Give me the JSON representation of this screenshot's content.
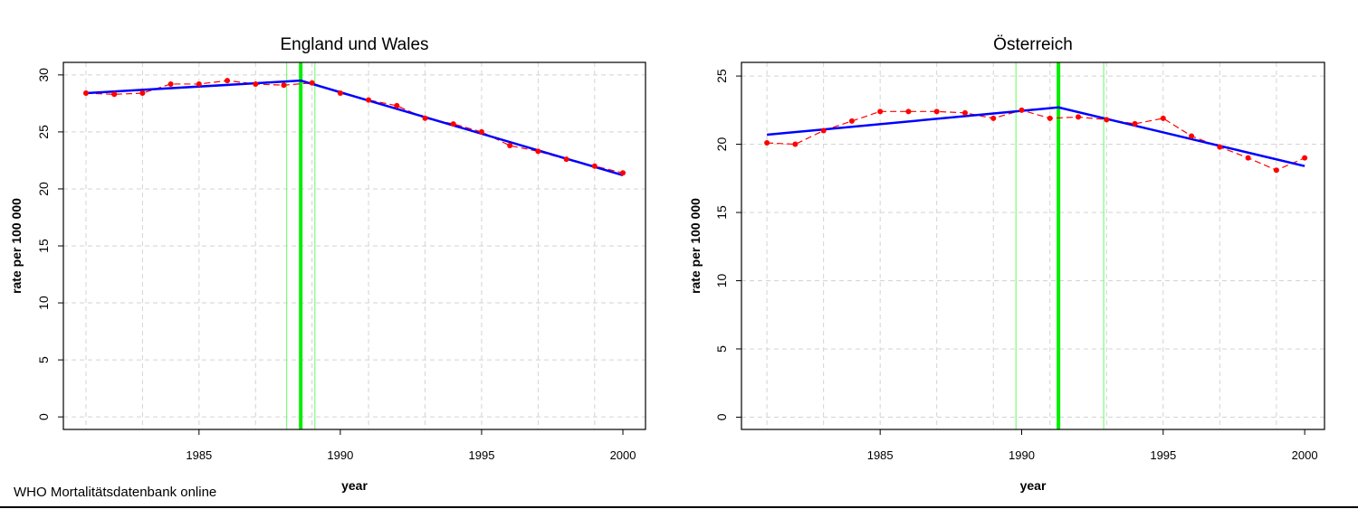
{
  "figure": {
    "source_note": "WHO Mortalitätsdatenbank online"
  },
  "colors": {
    "observed": "#ff0000",
    "trend": "#0000ff",
    "breakpoint": "#00ee00",
    "breakpoint_ci": "#7cfc7c",
    "grid": "#d3d3d3"
  },
  "chart_data": [
    {
      "type": "line",
      "title": "England und Wales",
      "xlabel": "year",
      "ylabel": "rate per 100 000",
      "xlim": [
        1980.2,
        2000.8
      ],
      "ylim": [
        -1.1,
        31.1
      ],
      "xticks": [
        1985,
        1990,
        1995,
        2000
      ],
      "yticks": [
        0,
        5,
        10,
        15,
        20,
        25,
        30
      ],
      "grid": true,
      "series": [
        {
          "style": "observed-dashed-with-points",
          "x": [
            1981,
            1982,
            1983,
            1984,
            1985,
            1986,
            1987,
            1988,
            1989,
            1990,
            1991,
            1992,
            1993,
            1994,
            1995,
            1996,
            1997,
            1998,
            1999,
            2000
          ],
          "y": [
            28.4,
            28.3,
            28.4,
            29.2,
            29.2,
            29.5,
            29.2,
            29.1,
            29.3,
            28.4,
            27.8,
            27.3,
            26.2,
            25.7,
            25.0,
            23.8,
            23.3,
            22.6,
            22.0,
            21.4
          ]
        },
        {
          "style": "segmented-trend",
          "x": [
            1981,
            1988.6,
            2000
          ],
          "y": [
            28.4,
            29.5,
            21.2
          ]
        }
      ],
      "breakpoint": 1988.6,
      "breakpoint_ci": [
        1988.1,
        1989.1
      ]
    },
    {
      "type": "line",
      "title": "Österreich",
      "xlabel": "year",
      "ylabel": "rate per 100 000",
      "xlim": [
        1980.1,
        2000.7
      ],
      "ylim": [
        -0.9,
        26.0
      ],
      "xticks": [
        1985,
        1990,
        1995,
        2000
      ],
      "yticks": [
        0,
        5,
        10,
        15,
        20,
        25
      ],
      "grid": true,
      "series": [
        {
          "style": "observed-dashed-with-points",
          "x": [
            1981,
            1982,
            1983,
            1984,
            1985,
            1986,
            1987,
            1988,
            1989,
            1990,
            1991,
            1992,
            1993,
            1994,
            1995,
            1996,
            1997,
            1998,
            1999,
            2000
          ],
          "y": [
            20.1,
            20.0,
            21.0,
            21.7,
            22.4,
            22.4,
            22.4,
            22.3,
            21.9,
            22.5,
            21.9,
            22.0,
            21.8,
            21.5,
            21.9,
            20.6,
            19.8,
            19.0,
            18.1,
            19.0
          ]
        },
        {
          "style": "segmented-trend",
          "x": [
            1981,
            1991.3,
            2000
          ],
          "y": [
            20.7,
            22.7,
            18.4
          ]
        }
      ],
      "breakpoint": 1991.3,
      "breakpoint_ci": [
        1989.8,
        1992.9
      ]
    }
  ]
}
